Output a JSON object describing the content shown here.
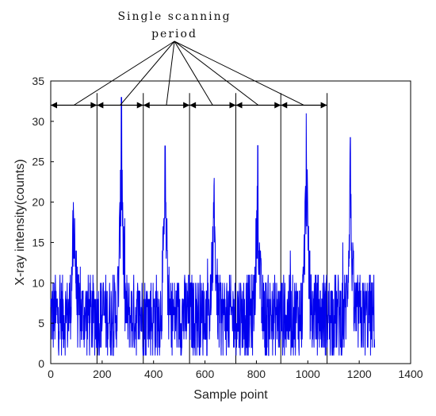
{
  "chart_data": {
    "type": "line",
    "title": "",
    "xlabel": "Sample point",
    "ylabel": "X-ray intensity(counts)",
    "xlim": [
      0,
      1400
    ],
    "ylim": [
      0,
      35
    ],
    "x_ticks": [
      0,
      200,
      400,
      600,
      800,
      1000,
      1200,
      1400
    ],
    "y_ticks": [
      0,
      5,
      10,
      15,
      20,
      25,
      30,
      35
    ],
    "grid": false,
    "series_color": "#0000ee",
    "series": [
      {
        "peaks": [
          {
            "x": 90,
            "y": 23
          },
          {
            "x": 275,
            "y": 34
          },
          {
            "x": 445,
            "y": 28
          },
          {
            "x": 635,
            "y": 24
          },
          {
            "x": 805,
            "y": 27
          },
          {
            "x": 995,
            "y": 33
          },
          {
            "x": 1165,
            "y": 28
          }
        ],
        "baseline": 6,
        "x_range": [
          0,
          1260
        ]
      }
    ],
    "annotation": {
      "text_line1": "Single scanning",
      "text_line2": "period",
      "period_boundaries": [
        180,
        360,
        540,
        720,
        895,
        1075
      ],
      "arrow_y": 32
    }
  }
}
